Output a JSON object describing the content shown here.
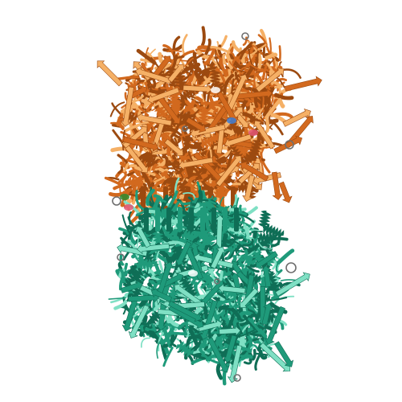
{
  "scene": {
    "subject": "protein-structure-cartoon",
    "background": "#ffffff",
    "chains": [
      {
        "id": "A",
        "color": "#d2691e",
        "light": "#f5b066",
        "dark": "#9c4a10"
      },
      {
        "id": "B",
        "color": "#1f9a7a",
        "light": "#7fe0c4",
        "dark": "#0f6e56"
      }
    ],
    "ligand_colors": [
      "#7a7a7a",
      "#e05577",
      "#3a7bd5",
      "#2e8b2e"
    ]
  }
}
